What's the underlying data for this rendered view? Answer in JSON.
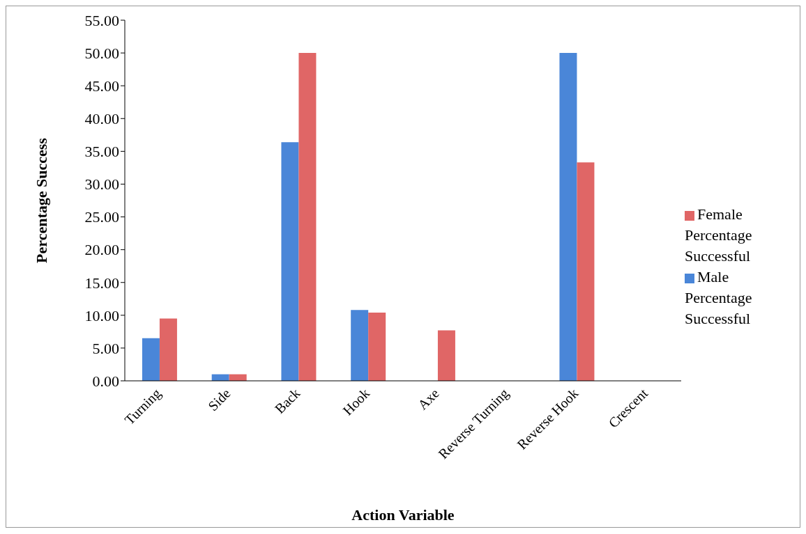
{
  "chart_data": {
    "type": "bar",
    "xlabel": "Action Variable",
    "ylabel": "Percentage Success",
    "categories": [
      "Turning",
      "Side",
      "Back",
      "Hook",
      "Axe",
      "Reverse Turning",
      "Reverse Hook",
      "Crescent"
    ],
    "series": [
      {
        "name": "Male Percentage Successful",
        "color": "#4a86d8",
        "values": [
          6.5,
          1.0,
          36.4,
          10.8,
          0,
          0,
          50.0,
          0
        ]
      },
      {
        "name": "Female Percentage Successful",
        "color": "#e06666",
        "values": [
          9.5,
          1.0,
          50.0,
          10.4,
          7.7,
          0,
          33.3,
          0
        ]
      }
    ],
    "ylim": [
      0,
      55
    ],
    "yticks": [
      {
        "value": 0,
        "label": "0.00"
      },
      {
        "value": 5,
        "label": "5.00"
      },
      {
        "value": 10,
        "label": "10.00"
      },
      {
        "value": 15,
        "label": "15.00"
      },
      {
        "value": 20,
        "label": "20.00"
      },
      {
        "value": 25,
        "label": "25.00"
      },
      {
        "value": 30,
        "label": "30.00"
      },
      {
        "value": 35,
        "label": "35.00"
      },
      {
        "value": 40,
        "label": "40.00"
      },
      {
        "value": 45,
        "label": "45.00"
      },
      {
        "value": 50,
        "label": "50.00"
      },
      {
        "value": 55,
        "label": "55.00"
      }
    ],
    "grid": false,
    "legend": "right"
  }
}
